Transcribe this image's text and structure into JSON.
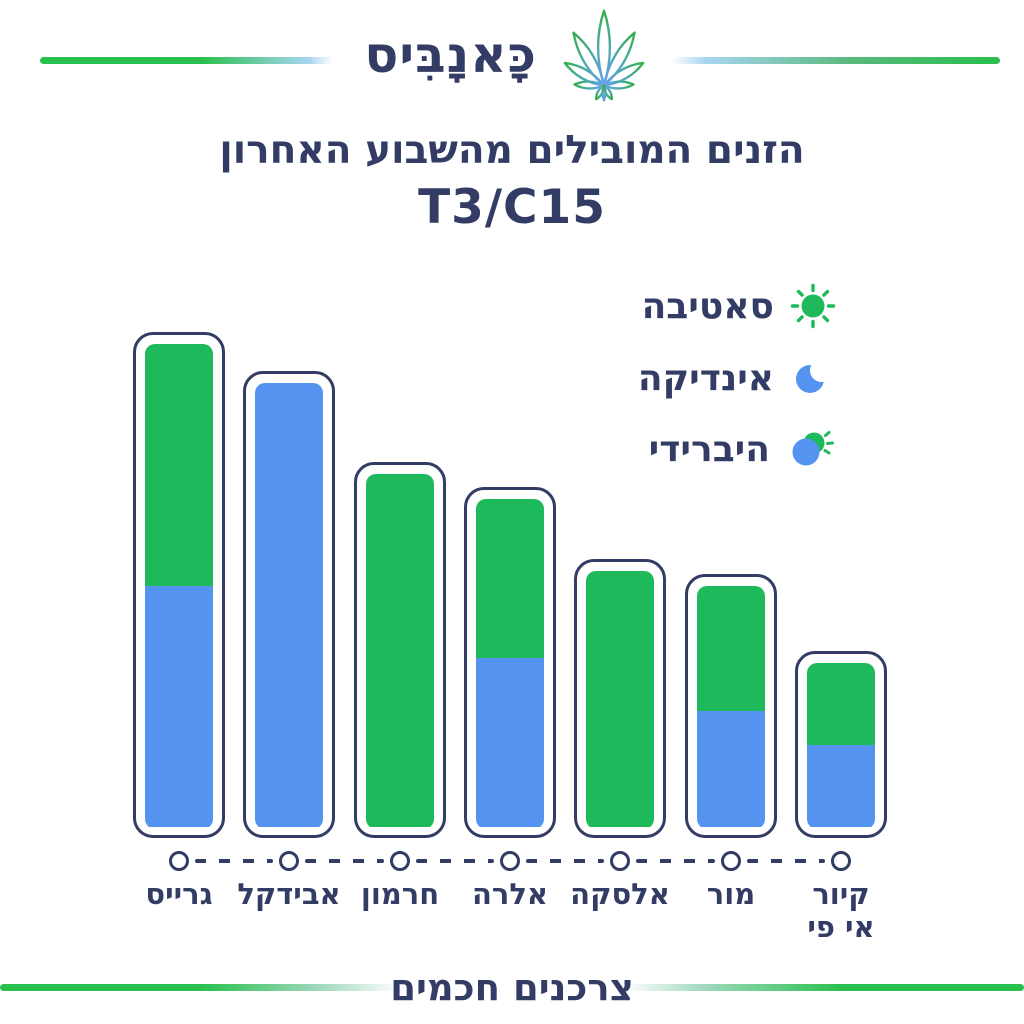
{
  "logo": {
    "text": "כָּאנָבִּיס"
  },
  "header": {
    "title_line1": "הזנים המובילים מהשבוע האחרון",
    "title_line2": "T3/C15"
  },
  "legend": {
    "items": [
      {
        "label": "סאטיבה",
        "meaning": "sativa",
        "icon": "sun-icon",
        "color": "#1eb95b"
      },
      {
        "label": "אינדיקה",
        "meaning": "indica",
        "icon": "moon-icon",
        "color": "#5494f0"
      },
      {
        "label": "היברידי",
        "meaning": "hybrid",
        "icon": "sun-moon-icon",
        "colors": [
          "#1eb95b",
          "#5494f0"
        ]
      }
    ]
  },
  "chart_data": {
    "type": "bar",
    "stacked": true,
    "direction": "rtl",
    "title": "הזנים המובילים מהשבוע האחרון T3/C15",
    "xlabel": "",
    "ylabel": "",
    "ylim": [
      0,
      100
    ],
    "grid": false,
    "legend_position": "upper-right",
    "categories": [
      "גרייס",
      "אבידקל",
      "חרמון",
      "אלרה",
      "אלסקה",
      "מור",
      "קיור אי פי"
    ],
    "category_lines": [
      [
        "גרייס"
      ],
      [
        "אבידקל"
      ],
      [
        "חרמון"
      ],
      [
        "אלרה"
      ],
      [
        "אלסקה"
      ],
      [
        "מור"
      ],
      [
        "קיור",
        "אי פי"
      ]
    ],
    "strain_types": [
      "hybrid",
      "indica",
      "sativa",
      "hybrid",
      "sativa",
      "hybrid",
      "hybrid"
    ],
    "series": [
      {
        "name": "סאטיבה",
        "color": "#1eb95b",
        "values": [
          50,
          0,
          73,
          33,
          53,
          26,
          17
        ]
      },
      {
        "name": "אינדיקה",
        "color": "#5494f0",
        "values": [
          50,
          92,
          0,
          35,
          0,
          24,
          17
        ]
      }
    ],
    "totals": [
      100,
      92,
      73,
      68,
      53,
      50,
      34
    ]
  },
  "footer": {
    "text": "צרכנים חכמים"
  },
  "colors": {
    "green": "#1eb95b",
    "blue": "#5494f0",
    "navy": "#333c64",
    "line_green": "#29bf4d",
    "line_blue": "#a9d6f2",
    "background": "#ffffff"
  }
}
